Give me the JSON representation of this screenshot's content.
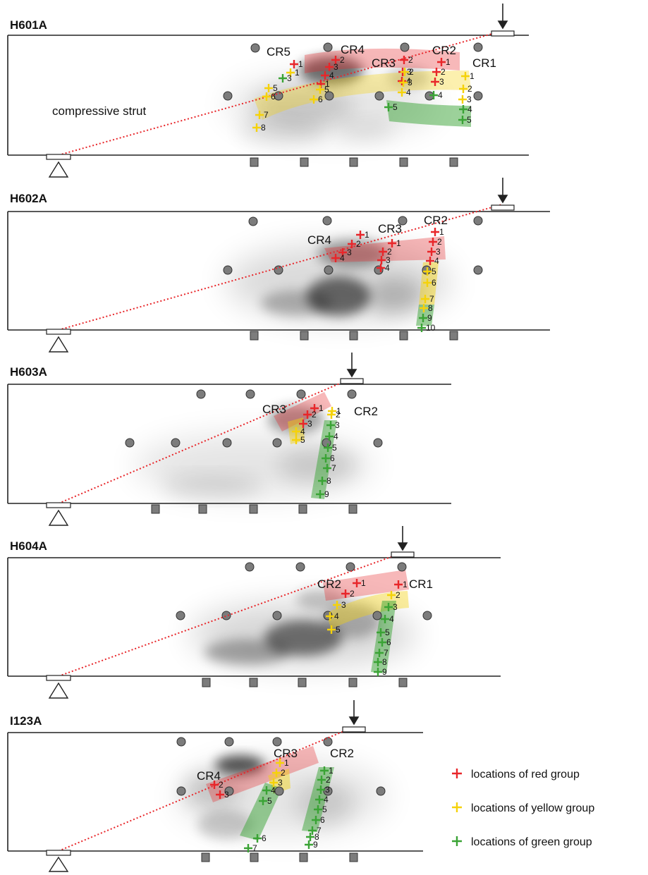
{
  "colors": {
    "red": "#e8262a",
    "yellow": "#f5d20a",
    "green": "#3aa335",
    "sensor": "#7c7c7c",
    "strut": "#e8262a",
    "shade": "#000000"
  },
  "strut_label": "compressive strut",
  "legend": [
    {
      "color_key": "red",
      "label": "locations of red group"
    },
    {
      "color_key": "yellow",
      "label": "locations of yellow group"
    },
    {
      "color_key": "green",
      "label": "locations of green group"
    }
  ],
  "panels": [
    {
      "name": "H601A",
      "cracks": [
        {
          "label": "CR5"
        },
        {
          "label": "CR4"
        },
        {
          "label": "CR3"
        },
        {
          "label": "CR2"
        },
        {
          "label": "CR1"
        }
      ],
      "groups": {
        "red": [
          "1",
          "2",
          "3",
          "4",
          "1",
          "2",
          "3",
          "4",
          "1",
          "2",
          "3"
        ],
        "yellow": [
          "1",
          "2",
          "3",
          "4",
          "5",
          "6",
          "5",
          "6",
          "7",
          "8",
          "1",
          "2",
          "3",
          "4",
          "1",
          "2",
          "3"
        ],
        "green": [
          "3",
          "5",
          "4",
          "4",
          "5"
        ]
      }
    },
    {
      "name": "H602A",
      "cracks": [
        {
          "label": "CR4"
        },
        {
          "label": "CR3"
        },
        {
          "label": "CR2"
        }
      ],
      "groups": {
        "red": [
          "1",
          "2",
          "3",
          "4",
          "1",
          "2",
          "3",
          "4",
          "1",
          "2",
          "3",
          "4"
        ],
        "yellow": [
          "5",
          "6",
          "7",
          "8"
        ],
        "green": [
          "9",
          "10"
        ]
      }
    },
    {
      "name": "H603A",
      "cracks": [
        {
          "label": "CR3"
        },
        {
          "label": "CR2"
        }
      ],
      "groups": {
        "red": [
          "1",
          "2",
          "3"
        ],
        "yellow": [
          "4",
          "5",
          "1",
          "2"
        ],
        "green": [
          "3",
          "4",
          "5",
          "6",
          "7",
          "8",
          "9"
        ]
      }
    },
    {
      "name": "H604A",
      "cracks": [
        {
          "label": "CR2"
        },
        {
          "label": "CR1"
        }
      ],
      "groups": {
        "red": [
          "1",
          "2",
          "1"
        ],
        "yellow": [
          "3",
          "4",
          "5",
          "2"
        ],
        "green": [
          "3",
          "4",
          "5",
          "6",
          "7",
          "8",
          "9"
        ]
      }
    },
    {
      "name": "I123A",
      "cracks": [
        {
          "label": "CR4"
        },
        {
          "label": "CR3"
        },
        {
          "label": "CR2"
        }
      ],
      "groups": {
        "red": [
          "2",
          "3"
        ],
        "yellow": [
          "1",
          "2",
          "3"
        ],
        "green": [
          "4",
          "5",
          "6",
          "7",
          "1",
          "2",
          "3",
          "4",
          "5",
          "6",
          "7",
          "8",
          "9"
        ]
      }
    }
  ]
}
